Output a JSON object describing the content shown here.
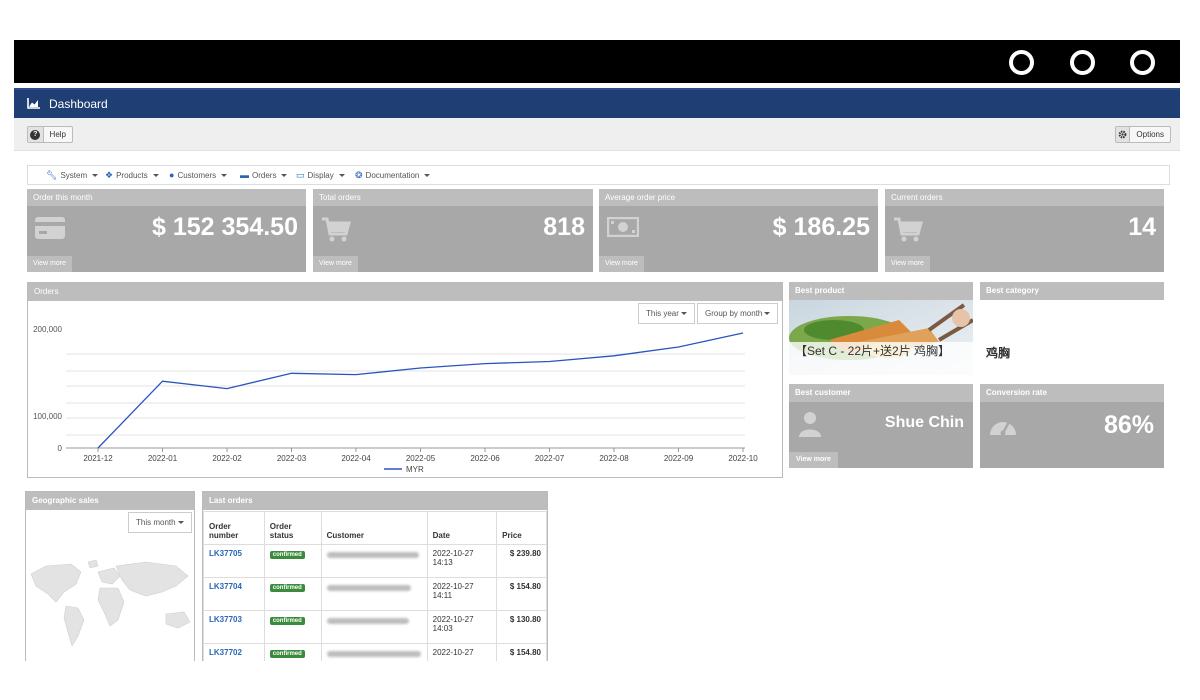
{
  "title": "Dashboard",
  "toolbar": {
    "help_label": "Help",
    "help_icon": "?",
    "options_label": "Options"
  },
  "menu": [
    {
      "label": "System",
      "icon": "wrench-icon"
    },
    {
      "label": "Products",
      "icon": "cubes-icon"
    },
    {
      "label": "Customers",
      "icon": "user-icon"
    },
    {
      "label": "Orders",
      "icon": "credit-card-icon"
    },
    {
      "label": "Display",
      "icon": "monitor-icon"
    },
    {
      "label": "Documentation",
      "icon": "lifebuoy-icon"
    }
  ],
  "kpis": [
    {
      "title": "Order this month",
      "value": "$ 152 354.50",
      "more": "View more",
      "icon": "credit-card-icon"
    },
    {
      "title": "Total orders",
      "value": "818",
      "more": "View more",
      "icon": "cart-icon"
    },
    {
      "title": "Average order price",
      "value": "$ 186.25",
      "more": "View more",
      "icon": "money-icon"
    },
    {
      "title": "Current orders",
      "value": "14",
      "more": "View more",
      "icon": "cart-icon"
    }
  ],
  "orders_panel": {
    "title": "Orders",
    "period": "This year",
    "group": "Group by month",
    "chart_data": {
      "type": "line",
      "x": [
        "2021-12",
        "2022-01",
        "2022-02",
        "2022-03",
        "2022-04",
        "2022-05",
        "2022-06",
        "2022-07",
        "2022-08",
        "2022-09",
        "2022-10"
      ],
      "series": [
        {
          "name": "MYR",
          "values": [
            0,
            155000,
            138000,
            173000,
            170000,
            185000,
            195000,
            200000,
            213000,
            233000,
            265000
          ],
          "color": "#2a55c0"
        }
      ],
      "ylim": [
        0,
        280000
      ],
      "yticks": [
        0,
        100000,
        200000
      ],
      "ytick_labels": [
        "0",
        "100,000",
        "200,000"
      ],
      "legend": "bottom"
    }
  },
  "best_product": {
    "title": "Best product",
    "name": "【Set C - 22片+送2片 鸡胸】"
  },
  "best_category": {
    "title": "Best category",
    "name": "鸡胸"
  },
  "best_customer": {
    "title": "Best customer",
    "name": "Shue Chin",
    "more": "View more"
  },
  "conversion": {
    "title": "Conversion rate",
    "value": "86%"
  },
  "geo": {
    "title": "Geographic sales",
    "period": "This month"
  },
  "last_orders": {
    "title": "Last orders",
    "columns": [
      "Order number",
      "Order status",
      "Customer",
      "Date",
      "Price"
    ],
    "rows": [
      {
        "number": "LK37705",
        "status": "confirmed",
        "date": "2022-10-27 14:13",
        "price": "$ 239.80"
      },
      {
        "number": "LK37704",
        "status": "confirmed",
        "date": "2022-10-27 14:11",
        "price": "$ 154.80"
      },
      {
        "number": "LK37703",
        "status": "confirmed",
        "date": "2022-10-27 14:03",
        "price": "$ 130.80"
      },
      {
        "number": "LK37702",
        "status": "confirmed",
        "date": "2022-10-27",
        "price": "$ 154.80"
      }
    ]
  }
}
